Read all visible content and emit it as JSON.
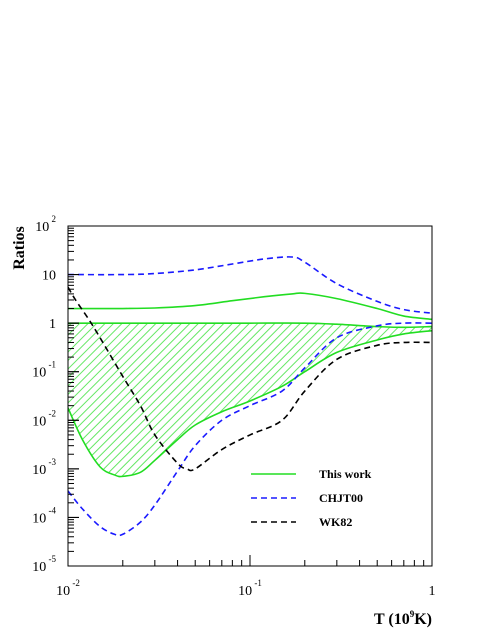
{
  "chart_data": {
    "type": "line",
    "title": "",
    "xlabel": {
      "text": "T (10",
      "sup": "9",
      "tail": "K)"
    },
    "ylabel": "Ratios",
    "x_scale": "log",
    "y_scale": "log",
    "xlim": [
      0.01,
      1
    ],
    "ylim": [
      1e-05,
      100
    ],
    "x_ticks": [
      {
        "value": 0.01,
        "base": "10",
        "exp": "-2"
      },
      {
        "value": 0.1,
        "base": "10",
        "exp": "-1"
      },
      {
        "value": 1,
        "base": "1",
        "exp": ""
      }
    ],
    "y_ticks": [
      {
        "value": 100,
        "base": "10",
        "exp": "2"
      },
      {
        "value": 10,
        "base": "10",
        "exp": ""
      },
      {
        "value": 1,
        "base": "1",
        "exp": ""
      },
      {
        "value": 0.1,
        "base": "10",
        "exp": "-1"
      },
      {
        "value": 0.01,
        "base": "10",
        "exp": "-2"
      },
      {
        "value": 0.001,
        "base": "10",
        "exp": "-3"
      },
      {
        "value": 0.0001,
        "base": "10",
        "exp": "-4"
      },
      {
        "value": 1e-05,
        "base": "10",
        "exp": "-5"
      }
    ],
    "legend": {
      "position": "bottom-right"
    },
    "series": [
      {
        "name": "This work",
        "role": "upper",
        "color": "#22dd22",
        "style": "solid",
        "x": [
          0.01,
          0.015,
          0.02,
          0.03,
          0.05,
          0.08,
          0.12,
          0.17,
          0.2,
          0.3,
          0.5,
          0.7,
          1.0
        ],
        "y": [
          2.0,
          2.0,
          2.0,
          2.05,
          2.3,
          2.9,
          3.5,
          4.0,
          4.1,
          3.2,
          2.0,
          1.4,
          1.2
        ]
      },
      {
        "name": "This work",
        "role": "central",
        "color": "#22dd22",
        "style": "solid",
        "x": [
          0.01,
          0.05,
          0.1,
          0.2,
          0.3,
          0.5,
          0.7,
          1.0
        ],
        "y": [
          1.0,
          1.0,
          1.0,
          1.0,
          0.95,
          0.85,
          0.82,
          0.85
        ]
      },
      {
        "name": "This work",
        "role": "lower",
        "color": "#22dd22",
        "style": "solid",
        "x": [
          0.01,
          0.012,
          0.015,
          0.018,
          0.02,
          0.025,
          0.03,
          0.04,
          0.05,
          0.07,
          0.1,
          0.15,
          0.2,
          0.3,
          0.5,
          0.7,
          1.0
        ],
        "y": [
          0.018,
          0.004,
          0.0011,
          0.00075,
          0.0007,
          0.00085,
          0.0015,
          0.004,
          0.008,
          0.015,
          0.025,
          0.05,
          0.1,
          0.25,
          0.45,
          0.6,
          0.7
        ]
      },
      {
        "name": "CHJT00",
        "color": "#1a1aff",
        "style": "dashed",
        "x": [
          0.01,
          0.02,
          0.03,
          0.05,
          0.08,
          0.12,
          0.17,
          0.2,
          0.3,
          0.5,
          0.7,
          1.0
        ],
        "y": [
          10,
          10,
          10.5,
          12.5,
          16.5,
          21,
          23,
          18,
          6.5,
          2.8,
          1.9,
          1.6
        ]
      },
      {
        "name": "CHJT00",
        "color": "#1a1aff",
        "style": "dashed",
        "x": [
          0.01,
          0.012,
          0.015,
          0.018,
          0.02,
          0.025,
          0.03,
          0.04,
          0.05,
          0.07,
          0.1,
          0.15,
          0.2,
          0.3,
          0.5,
          0.7,
          1.0
        ],
        "y": [
          0.00035,
          0.00015,
          6.5e-05,
          4.5e-05,
          4.5e-05,
          8e-05,
          0.00018,
          0.0009,
          0.003,
          0.01,
          0.02,
          0.04,
          0.12,
          0.5,
          0.88,
          1.0,
          1.0
        ]
      },
      {
        "name": "WK82",
        "color": "#000000",
        "style": "dashed",
        "x": [
          0.01,
          0.011,
          0.013,
          0.015,
          0.02,
          0.025,
          0.03,
          0.04,
          0.045,
          0.05,
          0.07,
          0.1,
          0.15,
          0.2,
          0.3,
          0.5,
          0.7,
          1.0
        ],
        "y": [
          5.5,
          3.0,
          1.2,
          0.5,
          0.08,
          0.02,
          0.005,
          0.0013,
          0.001,
          0.001,
          0.0025,
          0.005,
          0.01,
          0.04,
          0.18,
          0.35,
          0.4,
          0.4
        ]
      }
    ]
  }
}
